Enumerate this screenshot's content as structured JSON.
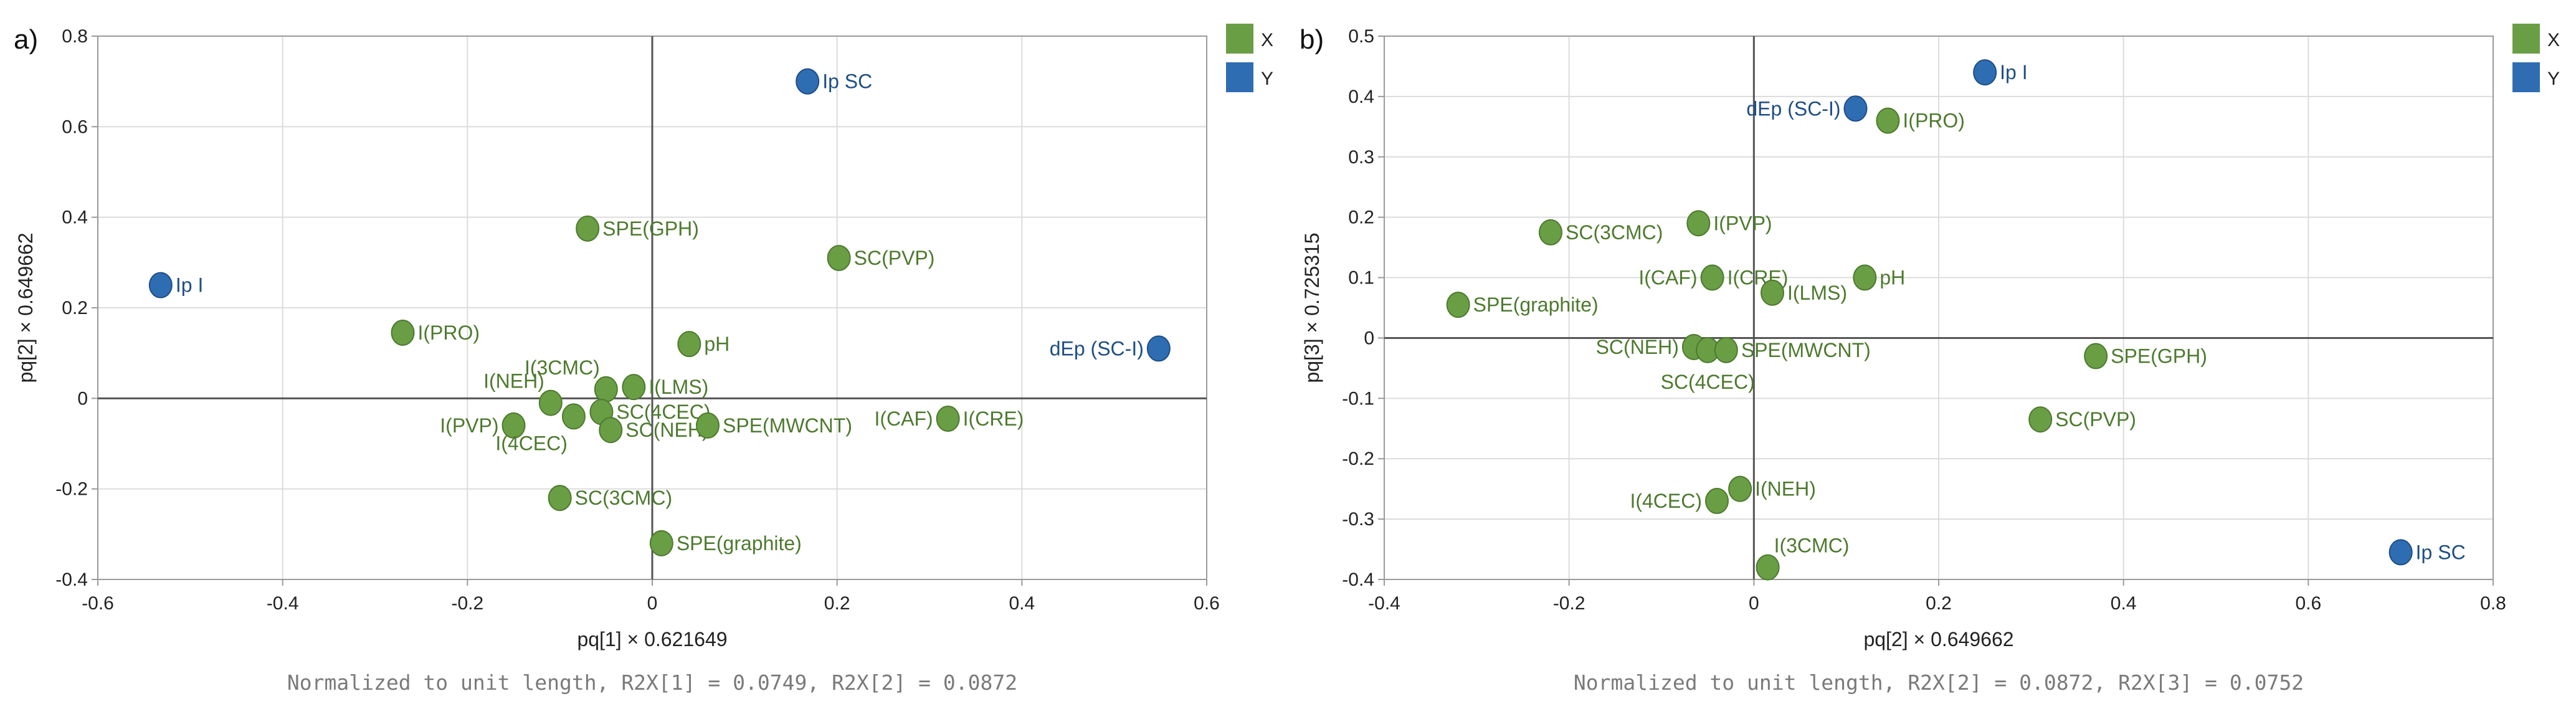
{
  "colors": {
    "x": "#6a9e45",
    "x_stroke": "#4d7a2e",
    "y": "#2f6db3",
    "y_stroke": "#1e4e86",
    "grid": "#dcdcdc",
    "frame": "#9a9a9a",
    "zero": "#555555"
  },
  "chart_data": [
    {
      "type": "scatter",
      "panel": "a)",
      "xlabel": "pq[1] × 0.621649",
      "ylabel": "pq[2] × 0.649662",
      "footnote": "Normalized to unit length, R2X[1] = 0.0749, R2X[2] = 0.0872",
      "xlim": [
        -0.6,
        0.6
      ],
      "ylim": [
        -0.4,
        0.8
      ],
      "xticks": [
        -0.6,
        -0.4,
        -0.2,
        0,
        0.2,
        0.4,
        0.6
      ],
      "yticks": [
        -0.4,
        -0.2,
        0,
        0.2,
        0.4,
        0.6,
        0.8
      ],
      "xticklabels": [
        "-0.6",
        "-0.4",
        "-0.2",
        "0",
        "0.2",
        "0.4",
        "0.6"
      ],
      "yticklabels": [
        "-0.4",
        "-0.2",
        "0",
        "0.2",
        "0.4",
        "0.6",
        "0.8"
      ],
      "legend": [
        {
          "label": "X",
          "series": "x"
        },
        {
          "label": "Y",
          "series": "y"
        }
      ],
      "points": [
        {
          "label": "Ip SC",
          "x": 0.168,
          "y": 0.7,
          "series": "y",
          "pos": "right"
        },
        {
          "label": "Ip I",
          "x": -0.532,
          "y": 0.25,
          "series": "y",
          "pos": "right"
        },
        {
          "label": "dEp (SC-I)",
          "x": 0.548,
          "y": 0.11,
          "series": "y",
          "pos": "left"
        },
        {
          "label": "SPE(GPH)",
          "x": -0.07,
          "y": 0.375,
          "series": "x",
          "pos": "right"
        },
        {
          "label": "SC(PVP)",
          "x": 0.202,
          "y": 0.31,
          "series": "x",
          "pos": "right"
        },
        {
          "label": "I(PRO)",
          "x": -0.27,
          "y": 0.145,
          "series": "x",
          "pos": "right"
        },
        {
          "label": "pH",
          "x": 0.04,
          "y": 0.12,
          "series": "x",
          "pos": "right"
        },
        {
          "label": "I(3CMC)",
          "x": -0.05,
          "y": 0.02,
          "series": "x",
          "pos": "above-left"
        },
        {
          "label": "I(NEH)",
          "x": -0.11,
          "y": -0.01,
          "series": "x",
          "pos": "above-left"
        },
        {
          "label": "I(LMS)",
          "x": -0.02,
          "y": 0.025,
          "series": "x",
          "pos": "right"
        },
        {
          "label": "SC(4CEC)",
          "x": -0.055,
          "y": -0.03,
          "series": "x",
          "pos": "right"
        },
        {
          "label": "SC(NEH)",
          "x": -0.045,
          "y": -0.07,
          "series": "x",
          "pos": "right"
        },
        {
          "label": "I(PVP)",
          "x": -0.15,
          "y": -0.06,
          "series": "x",
          "pos": "left"
        },
        {
          "label": "I(4CEC)",
          "x": -0.085,
          "y": -0.04,
          "series": "x",
          "pos": "below-left"
        },
        {
          "label": "SPE(MWCNT)",
          "x": 0.06,
          "y": -0.06,
          "series": "x",
          "pos": "right"
        },
        {
          "label": "I(CAF)",
          "x": 0.32,
          "y": -0.045,
          "series": "x",
          "pos": "left"
        },
        {
          "label": "I(CRE)",
          "x": 0.32,
          "y": -0.045,
          "series": "x",
          "pos": "right"
        },
        {
          "label": "SC(3CMC)",
          "x": -0.1,
          "y": -0.22,
          "series": "x",
          "pos": "right"
        },
        {
          "label": "SPE(graphite)",
          "x": 0.01,
          "y": -0.32,
          "series": "x",
          "pos": "right"
        }
      ]
    },
    {
      "type": "scatter",
      "panel": "b)",
      "xlabel": "pq[2] × 0.649662",
      "ylabel": "pq[3] × 0.725315",
      "footnote": "Normalized to unit length, R2X[2] = 0.0872, R2X[3] = 0.0752",
      "xlim": [
        -0.4,
        0.8
      ],
      "ylim": [
        -0.4,
        0.5
      ],
      "xticks": [
        -0.4,
        -0.2,
        0,
        0.2,
        0.4,
        0.6,
        0.8
      ],
      "yticks": [
        -0.4,
        -0.3,
        -0.2,
        -0.1,
        0,
        0.1,
        0.2,
        0.3,
        0.4,
        0.5
      ],
      "xticklabels": [
        "-0.4",
        "-0.2",
        "0",
        "0.2",
        "0.4",
        "0.6",
        "0.8"
      ],
      "yticklabels": [
        "-0.4",
        "-0.3",
        "-0.2",
        "-0.1",
        "0",
        "0.1",
        "0.2",
        "0.3",
        "0.4",
        "0.5"
      ],
      "legend": [
        {
          "label": "X",
          "series": "x"
        },
        {
          "label": "Y",
          "series": "y"
        }
      ],
      "points": [
        {
          "label": "Ip I",
          "x": 0.25,
          "y": 0.44,
          "series": "y",
          "pos": "right"
        },
        {
          "label": "dEp (SC-I)",
          "x": 0.11,
          "y": 0.38,
          "series": "y",
          "pos": "left"
        },
        {
          "label": "Ip SC",
          "x": 0.7,
          "y": -0.355,
          "series": "y",
          "pos": "right"
        },
        {
          "label": "I(PRO)",
          "x": 0.145,
          "y": 0.36,
          "series": "x",
          "pos": "right"
        },
        {
          "label": "I(PVP)",
          "x": -0.06,
          "y": 0.19,
          "series": "x",
          "pos": "right"
        },
        {
          "label": "SC(3CMC)",
          "x": -0.22,
          "y": 0.175,
          "series": "x",
          "pos": "right"
        },
        {
          "label": "I(CAF)",
          "x": -0.045,
          "y": 0.1,
          "series": "x",
          "pos": "left"
        },
        {
          "label": "I(CRE)",
          "x": -0.045,
          "y": 0.1,
          "series": "x",
          "pos": "right"
        },
        {
          "label": "pH",
          "x": 0.12,
          "y": 0.1,
          "series": "x",
          "pos": "right"
        },
        {
          "label": "I(LMS)",
          "x": 0.02,
          "y": 0.075,
          "series": "x",
          "pos": "right"
        },
        {
          "label": "SPE(graphite)",
          "x": -0.32,
          "y": 0.055,
          "series": "x",
          "pos": "right"
        },
        {
          "label": "SC(NEH)",
          "x": -0.065,
          "y": -0.015,
          "series": "x",
          "pos": "left"
        },
        {
          "label": "SC(4CEC)",
          "x": -0.05,
          "y": -0.02,
          "series": "x",
          "pos": "below"
        },
        {
          "label": "SPE(MWCNT)",
          "x": -0.03,
          "y": -0.02,
          "series": "x",
          "pos": "right"
        },
        {
          "label": "SPE(GPH)",
          "x": 0.37,
          "y": -0.03,
          "series": "x",
          "pos": "right"
        },
        {
          "label": "SC(PVP)",
          "x": 0.31,
          "y": -0.135,
          "series": "x",
          "pos": "right"
        },
        {
          "label": "I(NEH)",
          "x": -0.015,
          "y": -0.25,
          "series": "x",
          "pos": "right"
        },
        {
          "label": "I(4CEC)",
          "x": -0.04,
          "y": -0.27,
          "series": "x",
          "pos": "left"
        },
        {
          "label": "I(3CMC)",
          "x": 0.015,
          "y": -0.38,
          "series": "x",
          "pos": "above-right"
        }
      ]
    }
  ]
}
